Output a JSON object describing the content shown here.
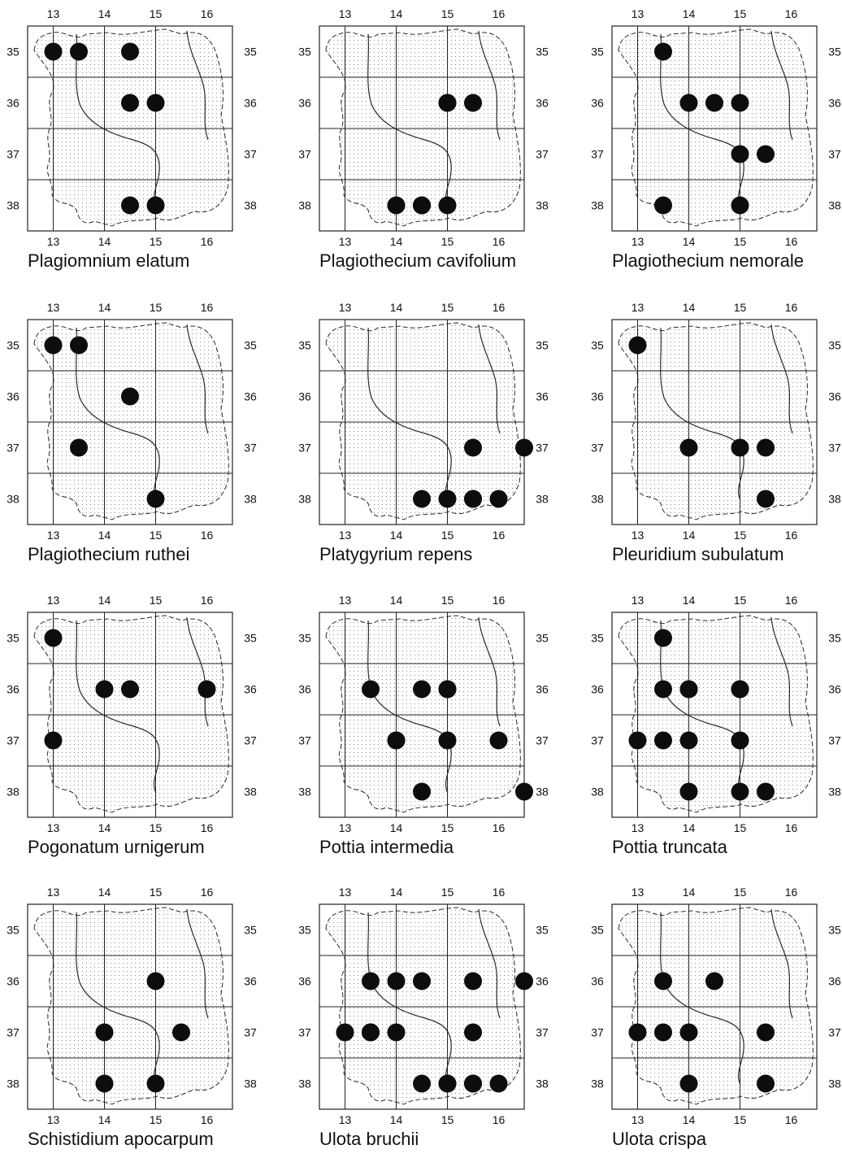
{
  "grid": {
    "columns": [
      "13",
      "14",
      "15",
      "16"
    ],
    "rows": [
      "35",
      "36",
      "37",
      "38"
    ]
  },
  "colors": {
    "frame": "#222222",
    "dot": "#0d0d0d",
    "stipple": "#8a8a8a",
    "river": "#2a2a2a"
  },
  "maps": [
    {
      "name": "Plagiomnium elatum",
      "dots": [
        [
          35,
          13.0
        ],
        [
          35,
          13.5
        ],
        [
          35,
          14.5
        ],
        [
          36,
          14.5
        ],
        [
          36,
          15.0
        ],
        [
          38,
          14.5
        ],
        [
          38,
          15.0
        ]
      ]
    },
    {
      "name": "Plagiothecium cavifolium",
      "dots": [
        [
          36,
          15.0
        ],
        [
          36,
          15.0
        ],
        [
          36,
          15.5
        ],
        [
          38,
          14.0
        ],
        [
          38,
          14.5
        ],
        [
          38,
          14.5
        ],
        [
          38,
          15.0
        ]
      ]
    },
    {
      "name": "Plagiothecium nemorale",
      "dots": [
        [
          35,
          13.5
        ],
        [
          36,
          14.0
        ],
        [
          36,
          14.5
        ],
        [
          36,
          15.0
        ],
        [
          37,
          15.0
        ],
        [
          37,
          15.5
        ],
        [
          38,
          13.5
        ],
        [
          38,
          15.0
        ]
      ]
    },
    {
      "name": "Plagiothecium ruthei",
      "dots": [
        [
          35,
          13.0
        ],
        [
          35,
          13.5
        ],
        [
          36,
          14.5
        ],
        [
          37,
          13.5
        ],
        [
          38,
          15.0
        ]
      ]
    },
    {
      "name": "Platygyrium repens",
      "dots": [
        [
          37,
          16.5
        ],
        [
          37,
          15.5
        ],
        [
          38,
          15.0
        ],
        [
          38,
          15.5
        ],
        [
          38,
          14.5
        ],
        [
          38,
          15.5
        ],
        [
          38,
          16.0
        ]
      ]
    },
    {
      "name": "Pleuridium subulatum",
      "dots": [
        [
          35,
          13.0
        ],
        [
          37,
          15.0
        ],
        [
          37,
          15.5
        ],
        [
          37,
          14.0
        ],
        [
          38,
          15.5
        ]
      ]
    },
    {
      "name": "Pogonatum urnigerum",
      "dots": [
        [
          35,
          13.0
        ],
        [
          36,
          14.0
        ],
        [
          36,
          14.5
        ],
        [
          36,
          16.0
        ],
        [
          37,
          13.0
        ]
      ]
    },
    {
      "name": "Pottia intermedia",
      "dots": [
        [
          36,
          14.5
        ],
        [
          36,
          15.0
        ],
        [
          36,
          13.5
        ],
        [
          36,
          15.0
        ],
        [
          37,
          14.0
        ],
        [
          37,
          15.0
        ],
        [
          37,
          14.0
        ],
        [
          37,
          16.0
        ],
        [
          38,
          14.5
        ],
        [
          38,
          16.5
        ]
      ]
    },
    {
      "name": "Pottia truncata",
      "dots": [
        [
          35,
          13.5
        ],
        [
          36,
          13.5
        ],
        [
          36,
          14.0
        ],
        [
          36,
          15.0
        ],
        [
          36,
          14.0
        ],
        [
          36,
          15.0
        ],
        [
          37,
          13.5
        ],
        [
          37,
          15.0
        ],
        [
          37,
          13.0
        ],
        [
          37,
          14.0
        ],
        [
          38,
          15.0
        ],
        [
          38,
          15.5
        ],
        [
          38,
          14.0
        ]
      ]
    },
    {
      "name": "Schistidium apocarpum",
      "dots": [
        [
          36,
          15.0
        ],
        [
          37,
          14.0
        ],
        [
          37,
          15.5
        ],
        [
          38,
          15.0
        ],
        [
          38,
          14.0
        ]
      ]
    },
    {
      "name": "Ulota bruchii",
      "dots": [
        [
          36,
          13.5
        ],
        [
          36,
          14.0
        ],
        [
          36,
          14.5
        ],
        [
          36,
          15.5
        ],
        [
          36,
          16.5
        ],
        [
          37,
          13.5
        ],
        [
          37,
          14.0
        ],
        [
          37,
          13.0
        ],
        [
          37,
          13.5
        ],
        [
          37,
          15.5
        ],
        [
          38,
          14.5
        ],
        [
          38,
          15.0
        ],
        [
          38,
          15.5
        ],
        [
          38,
          15.0
        ],
        [
          38,
          15.5
        ],
        [
          38,
          16.0
        ]
      ]
    },
    {
      "name": "Ulota crispa",
      "dots": [
        [
          36,
          13.5
        ],
        [
          36,
          14.5
        ],
        [
          37,
          13.5
        ],
        [
          37,
          14.0
        ],
        [
          37,
          13.0
        ],
        [
          37,
          15.5
        ],
        [
          38,
          14.0
        ],
        [
          38,
          15.5
        ]
      ]
    }
  ]
}
